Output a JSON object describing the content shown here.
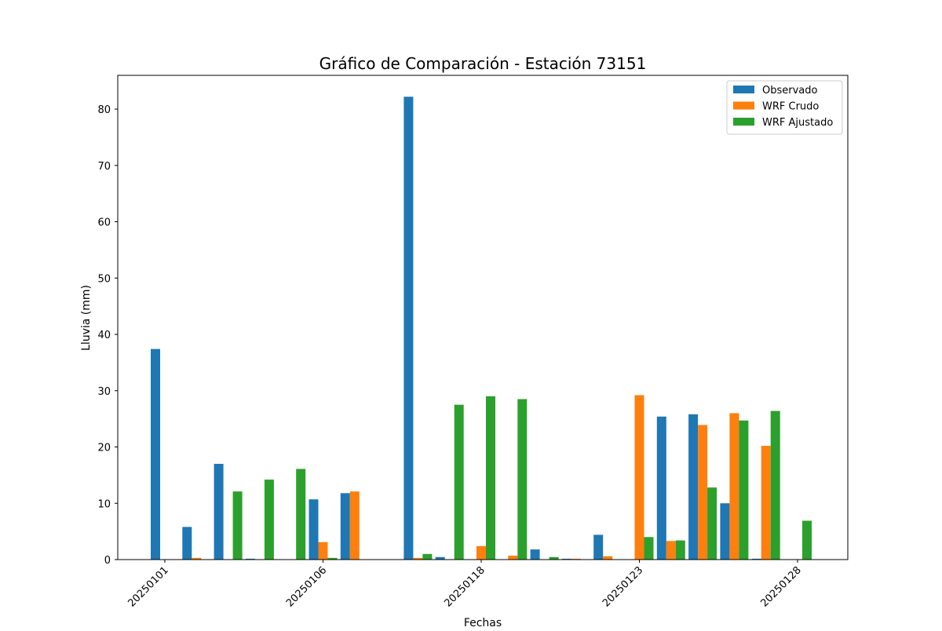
{
  "chart_data": {
    "type": "bar",
    "title": "Gráfico de Comparación - Estación 73151",
    "xlabel": "Fechas",
    "ylabel": "Lluvia (mm)",
    "ylim": [
      0,
      86
    ],
    "yticks": [
      0,
      10,
      20,
      30,
      40,
      50,
      60,
      70,
      80
    ],
    "grid": false,
    "legend_position": "top-right",
    "tick_labels": [
      "20250101",
      "20250106",
      "20250118",
      "20250123",
      "20250128"
    ],
    "tick_label_group_index": [
      0,
      5,
      10,
      15,
      20
    ],
    "group_count": 21,
    "series": [
      {
        "name": "Observado",
        "color": "#1f77b4",
        "values": [
          37.4,
          5.8,
          17.0,
          0.15,
          0,
          10.7,
          11.8,
          0,
          82.2,
          0.45,
          0,
          0,
          1.8,
          0.15,
          4.4,
          0,
          25.4,
          25.8,
          10.0,
          0.15,
          0
        ]
      },
      {
        "name": "WRF Crudo",
        "color": "#ff7f0e",
        "values": [
          0,
          0.3,
          0,
          0,
          0,
          3.1,
          12.1,
          0,
          0.3,
          0,
          2.4,
          0.7,
          0,
          0.15,
          0.6,
          29.2,
          3.3,
          23.9,
          26.0,
          20.2,
          0
        ]
      },
      {
        "name": "WRF Ajustado",
        "color": "#2ca02c",
        "values": [
          0,
          0,
          12.1,
          14.2,
          16.1,
          0.3,
          0,
          0,
          1.0,
          27.5,
          29.0,
          28.5,
          0.45,
          0,
          0,
          4.0,
          3.4,
          12.8,
          24.7,
          26.4,
          6.9
        ]
      }
    ]
  }
}
